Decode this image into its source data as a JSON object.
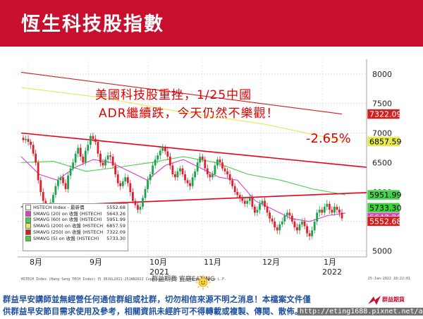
{
  "header": {
    "title": "恆生科技股指數"
  },
  "annotations": {
    "line1": "美國科技股重挫，1/25中國",
    "line2": "ADR繼續跌，今天仍然不樂觀！",
    "change": "-2.65%"
  },
  "legend": {
    "items": [
      {
        "name": "HSTECH Index - 最新價",
        "value": "5552.68",
        "color": "#ffffff"
      },
      {
        "name": "SMAVG (20)  on 收盤 (HSTECH)",
        "value": "5643.26",
        "color": "#e03cc8"
      },
      {
        "name": "SMAVG (60)  on 收盤 (HSTECH)",
        "value": "5951.99",
        "color": "#46d24a"
      },
      {
        "name": "SMAVG (200) on 收盤 (HSTECH)",
        "value": "6857.59",
        "color": "#e8e850"
      },
      {
        "name": "SMAVG (250) on 收盤 (HSTECH)",
        "value": "7322.09",
        "color": "#d02020"
      },
      {
        "name": "SMAVG (5)   on 收盤 (HSTECH)",
        "value": "5733.30",
        "color": "#40d040"
      }
    ]
  },
  "chart_data": {
    "type": "line",
    "title": "恆生科技股指數",
    "ylim": [
      4900,
      8250
    ],
    "y_ticks": [
      "8000",
      "7500",
      "7000",
      "6500",
      "6000",
      "5500",
      "5000"
    ],
    "x_month_labels": [
      "8月",
      "9月",
      "10月",
      "11月",
      "12月",
      "1月"
    ],
    "x_year_labels": [
      "2021",
      "2022"
    ],
    "price_tags": [
      {
        "label": "7322.09",
        "value": 7322.09,
        "color": "#d02020"
      },
      {
        "label": "6857.59",
        "value": 6857.59,
        "color": "#e8e850"
      },
      {
        "label": "5951.99",
        "value": 5951.99,
        "color": "#46d24a"
      },
      {
        "label": "5643.26",
        "value": 5643.26,
        "color": "#e03cc8"
      },
      {
        "label": "5733.30",
        "value": 5733.3,
        "color": "#40d040"
      },
      {
        "label": "5552.68",
        "value": 5552.68,
        "color": "#d02020"
      }
    ],
    "close_series": [
      6880,
      6900,
      6850,
      6800,
      6650,
      6500,
      6200,
      6000,
      5850,
      5600,
      5680,
      5820,
      5950,
      6100,
      6200,
      6250,
      6150,
      6050,
      6280,
      6400,
      6500,
      6650,
      6750,
      6600,
      6500,
      6700,
      6800,
      6950,
      6900,
      6850,
      6650,
      6500,
      6450,
      6550,
      6620,
      6600,
      6450,
      6300,
      6150,
      6100,
      6180,
      6250,
      6150,
      6000,
      5850,
      5780,
      5700,
      5750,
      5900,
      6050,
      6200,
      6300,
      6450,
      6550,
      6620,
      6700,
      6750,
      6690,
      6600,
      6450,
      6300,
      6250,
      6350,
      6400,
      6300,
      6200,
      6150,
      6100,
      6250,
      6350,
      6500,
      6600,
      6550,
      6400,
      6300,
      6250,
      6300,
      6450,
      6550,
      6500,
      6400,
      6350,
      6300,
      6200,
      6100,
      6000,
      5950,
      5900,
      5850,
      5800,
      5850,
      5900,
      5750,
      5650,
      5700,
      5800,
      5850,
      5750,
      5650,
      5550,
      5500,
      5400,
      5350,
      5450,
      5500,
      5600,
      5650,
      5600,
      5500,
      5400,
      5350,
      5450,
      5500,
      5420,
      5300,
      5250,
      5350,
      5500,
      5650,
      5700,
      5650,
      5750,
      5800,
      5700,
      5650,
      5750,
      5700,
      5650,
      5552.68
    ],
    "series": [
      {
        "name": "SMAVG (250)",
        "color": "#d02020",
        "values": [
          8030,
          7322.09
        ]
      },
      {
        "name": "SMAVG (200)",
        "color": "#e8e850",
        "values": [
          7770,
          7600,
          7350,
          7150,
          6857.59
        ]
      },
      {
        "name": "SMAVG (60)",
        "color": "#46d24a",
        "values": [
          6500,
          6520,
          6350,
          6420,
          6500,
          6600,
          6500,
          6300,
          6200,
          6050,
          5951.99
        ]
      },
      {
        "name": "SMAVG (20)",
        "color": "#e03cc8",
        "values": [
          6600,
          6300,
          6200,
          6420,
          6550,
          6500,
          6350,
          6200,
          6450,
          6550,
          6400,
          6250,
          6200,
          5850,
          5700,
          5550,
          5500,
          5600,
          5643.26
        ]
      },
      {
        "name": "Trend upper",
        "color": "#e8001c",
        "values": [
          7000,
          6420
        ]
      },
      {
        "name": "Trend lower",
        "color": "#e8001c",
        "values": [
          5750,
          5990
        ]
      }
    ]
  },
  "footer_source": "HSTECH Index (Hang Seng TECH Index) 日 30JUL2021-25JAN2022 Copyright© 2022 Bloomberg Finance L.P.",
  "footer_stamp": "25-Jan-2022 18:22:01",
  "watermark": "群益期貨   宜庭EATING",
  "disclaimer": {
    "line1": "群益早安講師並無經營任何通信群組或社群，切勿相信來源不明之消息！本檔案文件僅",
    "line2": "供群益早安節目需求使用及參考，相關資訊未經許可不得轉載或複製、傳閱、散佈。"
  },
  "url": "http://eting1688.pixnet.net/album",
  "logo_text": "群益期貨"
}
